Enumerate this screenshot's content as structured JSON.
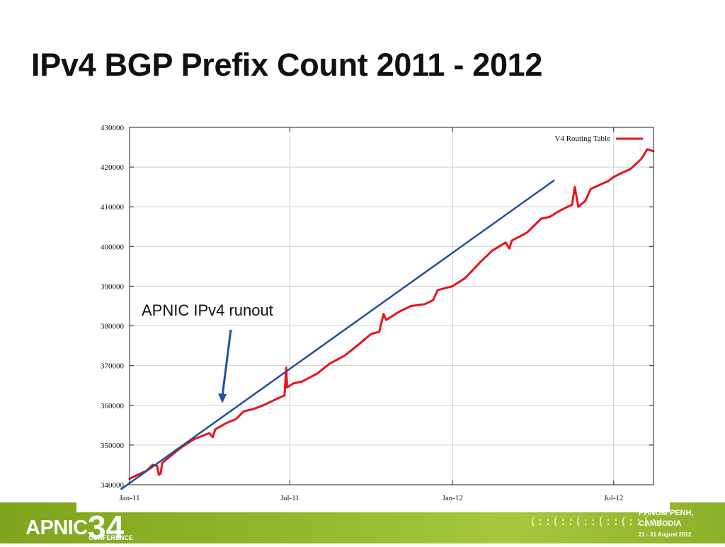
{
  "slide": {
    "title": "IPv4 BGP Prefix Count 2011 - 2012"
  },
  "annotation": {
    "text": "APNIC IPv4 runout"
  },
  "footer": {
    "brand_text": "APNIC",
    "brand_number": "34",
    "brand_sub": "CONFERENCE",
    "decoration": "(::(::(::(::(::(::",
    "venue_line1": "PHNOM PENH,",
    "venue_line2": "CAMBODIA",
    "venue_dates": "21 - 31 August 2012",
    "color_green": "#8db02a"
  },
  "chart_data": {
    "type": "line",
    "title": "",
    "xlabel": "",
    "ylabel": "",
    "x_range": [
      "2011-01-01",
      "2012-08-15"
    ],
    "ylim": [
      340000,
      430000
    ],
    "yticks": [
      340000,
      350000,
      360000,
      370000,
      380000,
      390000,
      400000,
      410000,
      420000,
      430000
    ],
    "xticks": [
      {
        "date": "2011-01-01",
        "label": "Jan-11"
      },
      {
        "date": "2011-07-01",
        "label": "Jul-11"
      },
      {
        "date": "2012-01-01",
        "label": "Jan-12"
      },
      {
        "date": "2012-07-01",
        "label": "Jul-12"
      }
    ],
    "grid": true,
    "legend": {
      "position": "top-right"
    },
    "series": [
      {
        "name": "V4 Routing Table",
        "color": "#e8141c",
        "points": [
          [
            "2011-01-01",
            341500
          ],
          [
            "2011-01-10",
            342500
          ],
          [
            "2011-01-20",
            343500
          ],
          [
            "2011-01-27",
            345000
          ],
          [
            "2011-02-01",
            344800
          ],
          [
            "2011-02-03",
            342500
          ],
          [
            "2011-02-05",
            342800
          ],
          [
            "2011-02-07",
            345500
          ],
          [
            "2011-02-15",
            347000
          ],
          [
            "2011-03-01",
            349500
          ],
          [
            "2011-03-15",
            351500
          ],
          [
            "2011-04-01",
            353000
          ],
          [
            "2011-04-05",
            352000
          ],
          [
            "2011-04-08",
            354000
          ],
          [
            "2011-04-20",
            355500
          ],
          [
            "2011-05-01",
            356500
          ],
          [
            "2011-05-10",
            358500
          ],
          [
            "2011-05-20",
            359000
          ],
          [
            "2011-06-01",
            360000
          ],
          [
            "2011-06-15",
            361500
          ],
          [
            "2011-06-25",
            362500
          ],
          [
            "2011-06-27",
            369500
          ],
          [
            "2011-06-28",
            364500
          ],
          [
            "2011-07-05",
            365500
          ],
          [
            "2011-07-15",
            366000
          ],
          [
            "2011-08-01",
            368000
          ],
          [
            "2011-08-15",
            370500
          ],
          [
            "2011-09-01",
            372500
          ],
          [
            "2011-09-15",
            375000
          ],
          [
            "2011-10-01",
            378000
          ],
          [
            "2011-10-10",
            378500
          ],
          [
            "2011-10-15",
            383000
          ],
          [
            "2011-10-18",
            381500
          ],
          [
            "2011-11-01",
            383500
          ],
          [
            "2011-11-15",
            385000
          ],
          [
            "2011-12-01",
            385500
          ],
          [
            "2011-12-10",
            386500
          ],
          [
            "2011-12-15",
            389000
          ],
          [
            "2012-01-01",
            390000
          ],
          [
            "2012-01-15",
            392000
          ],
          [
            "2012-02-01",
            396000
          ],
          [
            "2012-02-15",
            399000
          ],
          [
            "2012-03-01",
            401000
          ],
          [
            "2012-03-05",
            399500
          ],
          [
            "2012-03-08",
            401500
          ],
          [
            "2012-03-25",
            403500
          ],
          [
            "2012-04-10",
            407000
          ],
          [
            "2012-04-20",
            407500
          ],
          [
            "2012-05-01",
            409000
          ],
          [
            "2012-05-10",
            410000
          ],
          [
            "2012-05-15",
            410500
          ],
          [
            "2012-05-18",
            415000
          ],
          [
            "2012-05-22",
            410000
          ],
          [
            "2012-05-30",
            411500
          ],
          [
            "2012-06-05",
            414500
          ],
          [
            "2012-06-15",
            415500
          ],
          [
            "2012-06-25",
            416500
          ],
          [
            "2012-07-01",
            417500
          ],
          [
            "2012-07-10",
            418500
          ],
          [
            "2012-07-20",
            419500
          ],
          [
            "2012-08-01",
            422000
          ],
          [
            "2012-08-08",
            424500
          ],
          [
            "2012-08-15",
            424000
          ]
        ]
      }
    ],
    "trend_line": {
      "color": "#1f4fa0",
      "points": [
        [
          "2010-12-22",
          338800
        ],
        [
          "2012-04-25",
          416700
        ]
      ]
    }
  }
}
